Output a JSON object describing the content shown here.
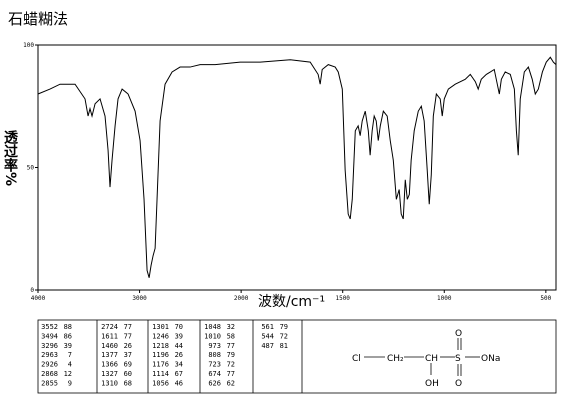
{
  "chart_data": {
    "type": "line",
    "title": "石蜡糊法",
    "ylabel": "透过率%",
    "xlabel": "波数/cm⁻¹",
    "xlim": [
      4000,
      450
    ],
    "x_scale": {
      "break": 2000,
      "ratio": 2
    },
    "ylim": [
      0,
      100
    ],
    "xticks": [
      4000,
      3000,
      2000,
      1500,
      1000,
      500
    ],
    "yticks": [
      100,
      50,
      0
    ],
    "color": "#000000",
    "x": [
      4000,
      3882,
      3783,
      3635,
      3537,
      3507,
      3488,
      3468,
      3438,
      3389,
      3340,
      3310,
      3291,
      3271,
      3241,
      3212,
      3172,
      3113,
      3044,
      2995,
      2956,
      2926,
      2906,
      2887,
      2867,
      2847,
      2828,
      2798,
      2749,
      2680,
      2601,
      2502,
      2404,
      2256,
      2010,
      1906,
      1758,
      1660,
      1621,
      1611,
      1601,
      1571,
      1537,
      1522,
      1502,
      1488,
      1473,
      1463,
      1453,
      1438,
      1424,
      1414,
      1404,
      1389,
      1374,
      1365,
      1355,
      1345,
      1335,
      1325,
      1315,
      1300,
      1281,
      1266,
      1251,
      1236,
      1222,
      1212,
      1202,
      1192,
      1182,
      1172,
      1163,
      1148,
      1128,
      1113,
      1099,
      1084,
      1074,
      1064,
      1054,
      1039,
      1020,
      1010,
      1000,
      980,
      946,
      897,
      872,
      847,
      833,
      818,
      793,
      773,
      754,
      739,
      729,
      719,
      700,
      675,
      655,
      645,
      636,
      626,
      606,
      586,
      567,
      552,
      537,
      517,
      498,
      478,
      463,
      450
    ],
    "values": [
      80,
      82,
      84,
      84,
      78,
      71,
      74,
      71,
      76,
      78,
      71,
      57,
      42,
      53,
      67,
      78,
      82,
      80,
      73,
      61,
      37,
      8,
      5,
      10,
      14,
      17,
      37,
      69,
      84,
      89,
      91,
      91,
      92,
      92,
      93,
      93,
      94,
      93,
      88,
      84,
      90,
      92,
      91,
      89,
      82,
      49,
      31,
      29,
      37,
      65,
      67,
      63,
      69,
      73,
      65,
      55,
      65,
      71,
      69,
      61,
      67,
      73,
      71,
      61,
      53,
      37,
      41,
      31,
      29,
      45,
      37,
      39,
      53,
      65,
      73,
      75,
      69,
      49,
      35,
      47,
      71,
      80,
      78,
      71,
      78,
      82,
      84,
      86,
      88,
      85,
      82,
      86,
      88,
      89,
      90,
      84,
      80,
      86,
      89,
      88,
      82,
      65,
      55,
      78,
      89,
      91,
      86,
      80,
      82,
      89,
      93,
      95,
      93,
      92
    ]
  },
  "peak_table": {
    "columns": [
      [
        [
          3552,
          88
        ],
        [
          3494,
          86
        ],
        [
          3296,
          39
        ],
        [
          2963,
          7
        ],
        [
          2926,
          4
        ],
        [
          2868,
          12
        ],
        [
          2855,
          9
        ]
      ],
      [
        [
          2724,
          77
        ],
        [
          1611,
          77
        ],
        [
          1460,
          26
        ],
        [
          1377,
          37
        ],
        [
          1366,
          69
        ],
        [
          1327,
          60
        ],
        [
          1310,
          68
        ]
      ],
      [
        [
          1301,
          70
        ],
        [
          1246,
          39
        ],
        [
          1218,
          44
        ],
        [
          1196,
          26
        ],
        [
          1176,
          34
        ],
        [
          1114,
          67
        ],
        [
          1056,
          46
        ]
      ],
      [
        [
          1048,
          32
        ],
        [
          1010,
          58
        ],
        [
          973,
          77
        ],
        [
          808,
          79
        ],
        [
          723,
          72
        ],
        [
          674,
          77
        ],
        [
          626,
          62
        ]
      ],
      [
        [
          561,
          79
        ],
        [
          544,
          72
        ],
        [
          487,
          81
        ]
      ]
    ]
  },
  "structure": {
    "cl": "Cl",
    "ch2": "CH₂",
    "ch": "CH",
    "s": "S",
    "o_top": "O",
    "o_bottom": "O",
    "ona": "ONa",
    "oh": "OH"
  }
}
